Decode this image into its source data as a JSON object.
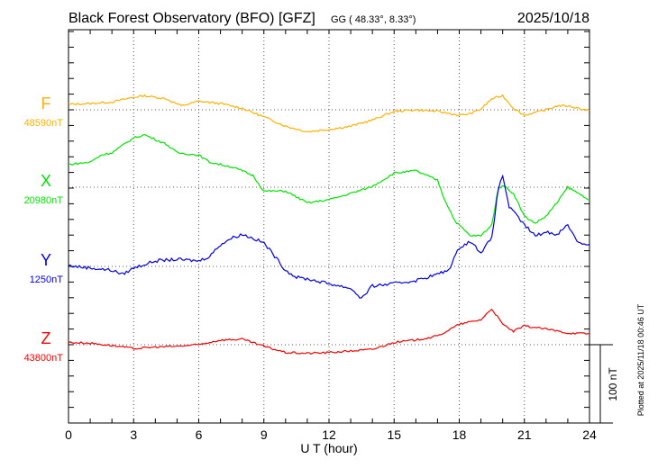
{
  "header": {
    "title": "Black Forest Observatory (BFO)  [GFZ]",
    "coords": "GG ( 48.33°,   8.33°)",
    "date": "2025/10/18"
  },
  "footer": {
    "plotted": "Plotted at 2025/11/18 00:46 UT",
    "scale_label": "100 nT"
  },
  "chart_data": {
    "type": "line",
    "title": "Black Forest Observatory (BFO) [GFZ] 2025/10/18",
    "xlabel": "U T (hour)",
    "ylabel": "",
    "xlim": [
      0,
      24
    ],
    "x_ticks": [
      "0",
      "3",
      "6",
      "9",
      "12",
      "15",
      "18",
      "21",
      "24"
    ],
    "scale_nT": 100,
    "grid": true,
    "series": [
      {
        "name": "F",
        "baseline_label": "48590nT",
        "baseline_nT": 48590,
        "color": "#ffb000",
        "points": [
          [
            0,
            7
          ],
          [
            1,
            8
          ],
          [
            2,
            10
          ],
          [
            3,
            16
          ],
          [
            3.5,
            18
          ],
          [
            4.5,
            14
          ],
          [
            5.2,
            5
          ],
          [
            6,
            11
          ],
          [
            7,
            8
          ],
          [
            8,
            2
          ],
          [
            9,
            -9
          ],
          [
            10,
            -21
          ],
          [
            11,
            -28
          ],
          [
            12,
            -25
          ],
          [
            13,
            -21
          ],
          [
            14,
            -13
          ],
          [
            15,
            -2
          ],
          [
            16,
            0
          ],
          [
            17,
            -2
          ],
          [
            18,
            -7
          ],
          [
            18.5,
            -5
          ],
          [
            19,
            1
          ],
          [
            19.5,
            14
          ],
          [
            20,
            18
          ],
          [
            20.5,
            2
          ],
          [
            21,
            -7
          ],
          [
            22,
            0
          ],
          [
            22.5,
            5
          ],
          [
            23,
            5
          ],
          [
            24,
            -1
          ]
        ]
      },
      {
        "name": "X",
        "baseline_label": "20980nT",
        "baseline_nT": 20980,
        "color": "#00e000",
        "points": [
          [
            0,
            29
          ],
          [
            1,
            32
          ],
          [
            1.5,
            41
          ],
          [
            2,
            44
          ],
          [
            3,
            63
          ],
          [
            3.5,
            67
          ],
          [
            4.5,
            55
          ],
          [
            5,
            44
          ],
          [
            6,
            41
          ],
          [
            6.5,
            32
          ],
          [
            7.5,
            26
          ],
          [
            8,
            21
          ],
          [
            8.5,
            15
          ],
          [
            9,
            -5
          ],
          [
            10,
            -5
          ],
          [
            11,
            -20
          ],
          [
            12,
            -16
          ],
          [
            13,
            -8
          ],
          [
            14,
            1
          ],
          [
            15,
            18
          ],
          [
            16,
            21
          ],
          [
            17,
            9
          ],
          [
            17.3,
            -14
          ],
          [
            17.8,
            -43
          ],
          [
            18.5,
            -62
          ],
          [
            19,
            -62
          ],
          [
            19.5,
            -48
          ],
          [
            19.8,
            -2
          ],
          [
            20,
            3
          ],
          [
            20.5,
            -8
          ],
          [
            21,
            -37
          ],
          [
            21.5,
            -46
          ],
          [
            22,
            -37
          ],
          [
            22.5,
            -20
          ],
          [
            23,
            0
          ],
          [
            23.5,
            -8
          ],
          [
            24,
            -16
          ]
        ]
      },
      {
        "name": "Y",
        "baseline_label": "1250nT",
        "baseline_nT": 1250,
        "color": "#0000e0",
        "points": [
          [
            0,
            1
          ],
          [
            1,
            -2
          ],
          [
            2,
            -5
          ],
          [
            2.5,
            -10
          ],
          [
            3,
            -2
          ],
          [
            4,
            7
          ],
          [
            5,
            9
          ],
          [
            6,
            7
          ],
          [
            6.5,
            13
          ],
          [
            7,
            28
          ],
          [
            7.5,
            36
          ],
          [
            8,
            41
          ],
          [
            8.5,
            36
          ],
          [
            9,
            30
          ],
          [
            9.5,
            13
          ],
          [
            10,
            -5
          ],
          [
            10.5,
            -14
          ],
          [
            11,
            -16
          ],
          [
            12,
            -22
          ],
          [
            13,
            -28
          ],
          [
            13.5,
            -41
          ],
          [
            14,
            -25
          ],
          [
            15,
            -22
          ],
          [
            16,
            -18
          ],
          [
            17,
            -10
          ],
          [
            17.5,
            -5
          ],
          [
            18,
            24
          ],
          [
            18.5,
            32
          ],
          [
            19,
            18
          ],
          [
            19.5,
            36
          ],
          [
            19.8,
            99
          ],
          [
            20,
            116
          ],
          [
            20.3,
            76
          ],
          [
            21,
            53
          ],
          [
            21.5,
            39
          ],
          [
            22,
            44
          ],
          [
            22.5,
            41
          ],
          [
            23,
            53
          ],
          [
            23.5,
            30
          ],
          [
            24,
            28
          ]
        ]
      },
      {
        "name": "Z",
        "baseline_label": "43800nT",
        "baseline_nT": 43800,
        "color": "#f00000",
        "points": [
          [
            0,
            3
          ],
          [
            1,
            2
          ],
          [
            2,
            -1
          ],
          [
            3,
            -5
          ],
          [
            4,
            -3
          ],
          [
            5,
            -2
          ],
          [
            6,
            0
          ],
          [
            7,
            6
          ],
          [
            8,
            7
          ],
          [
            9,
            -2
          ],
          [
            10,
            -10
          ],
          [
            11,
            -11
          ],
          [
            12,
            -10
          ],
          [
            13,
            -8
          ],
          [
            14,
            -6
          ],
          [
            15,
            3
          ],
          [
            16,
            6
          ],
          [
            17,
            11
          ],
          [
            18,
            26
          ],
          [
            19,
            32
          ],
          [
            19.5,
            46
          ],
          [
            20,
            26
          ],
          [
            20.5,
            17
          ],
          [
            21,
            24
          ],
          [
            22,
            20
          ],
          [
            23,
            15
          ],
          [
            24,
            14
          ]
        ]
      }
    ]
  }
}
